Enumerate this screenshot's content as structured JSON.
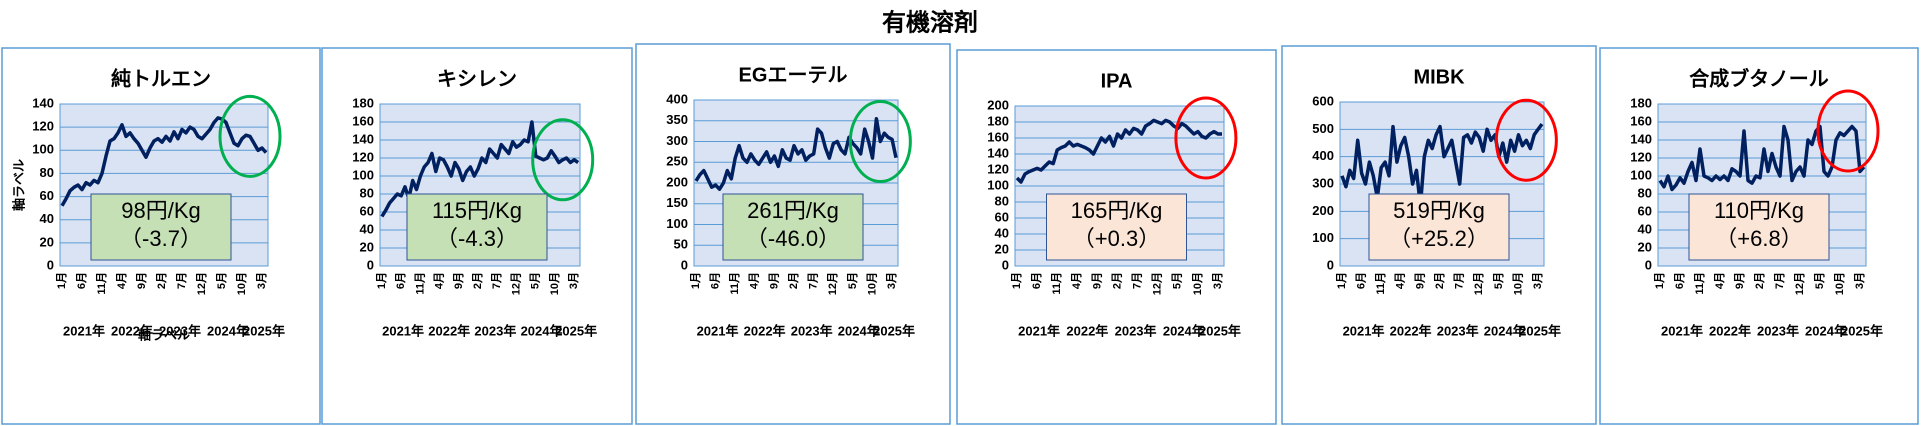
{
  "title": "有機溶剤",
  "chart_data": [
    {
      "type": "line",
      "title": "純トルエン",
      "ylabel": "軸ラベル",
      "xlabel": "軸ラベル",
      "color": "#002060",
      "categories": [
        "1月",
        null,
        null,
        null,
        null,
        "6月",
        null,
        null,
        null,
        null,
        "11月",
        null,
        null,
        null,
        null,
        "4月",
        null,
        null,
        null,
        null,
        "9月",
        null,
        null,
        null,
        null,
        "2月",
        null,
        null,
        null,
        null,
        "7月",
        null,
        null,
        null,
        null,
        "12月",
        null,
        null,
        null,
        null,
        "5月",
        null,
        null,
        null,
        null,
        "10月",
        null,
        null,
        null,
        null,
        "3月",
        null
      ],
      "values": [
        52,
        58,
        65,
        68,
        70,
        66,
        72,
        70,
        74,
        72,
        80,
        95,
        108,
        110,
        115,
        122,
        112,
        115,
        110,
        106,
        100,
        94,
        102,
        108,
        110,
        107,
        112,
        108,
        116,
        110,
        118,
        115,
        120,
        118,
        112,
        110,
        114,
        118,
        124,
        128,
        127,
        124,
        115,
        106,
        104,
        110,
        113,
        112,
        106,
        100,
        102,
        98
      ],
      "year_labels": [
        "2021年",
        "2022年",
        "2023年",
        "2024年",
        "2025年"
      ],
      "ylim": [
        0,
        140
      ],
      "yticks": [
        0,
        20,
        40,
        60,
        80,
        100,
        120,
        140
      ],
      "annotation": [
        "98円/Kg",
        "（-3.7）"
      ],
      "annotation_color": "#c5e0b4",
      "circle_color": "#00b050"
    },
    {
      "type": "line",
      "title": "キシレン",
      "color": "#002060",
      "categories": [
        "1月",
        null,
        null,
        null,
        null,
        "6月",
        null,
        null,
        null,
        null,
        "11月",
        null,
        null,
        null,
        null,
        "4月",
        null,
        null,
        null,
        null,
        "9月",
        null,
        null,
        null,
        null,
        "2月",
        null,
        null,
        null,
        null,
        "7月",
        null,
        null,
        null,
        null,
        "12月",
        null,
        null,
        null,
        null,
        "5月",
        null,
        null,
        null,
        null,
        "10月",
        null,
        null,
        null,
        null,
        "3月",
        null
      ],
      "values": [
        55,
        62,
        70,
        75,
        80,
        78,
        88,
        75,
        95,
        85,
        100,
        110,
        115,
        125,
        105,
        120,
        118,
        110,
        100,
        115,
        108,
        95,
        105,
        110,
        100,
        108,
        120,
        115,
        130,
        125,
        120,
        135,
        130,
        125,
        138,
        132,
        135,
        140,
        138,
        160,
        122,
        120,
        118,
        120,
        128,
        122,
        115,
        118,
        120,
        115,
        118,
        115
      ],
      "year_labels": [
        "2021年",
        "2022年",
        "2023年",
        "2024年",
        "2025年"
      ],
      "ylim": [
        0,
        180
      ],
      "yticks": [
        0,
        20,
        40,
        60,
        80,
        100,
        120,
        140,
        160,
        180
      ],
      "annotation": [
        "115円/Kg",
        "（-4.3）"
      ],
      "annotation_color": "#c5e0b4",
      "circle_color": "#00b050"
    },
    {
      "type": "line",
      "title": "EGエーテル",
      "color": "#002060",
      "categories": [
        "1月",
        null,
        null,
        null,
        null,
        "6月",
        null,
        null,
        null,
        null,
        "11月",
        null,
        null,
        null,
        null,
        "4月",
        null,
        null,
        null,
        null,
        "9月",
        null,
        null,
        null,
        null,
        "2月",
        null,
        null,
        null,
        null,
        "7月",
        null,
        null,
        null,
        null,
        "12月",
        null,
        null,
        null,
        null,
        "5月",
        null,
        null,
        null,
        null,
        "10月",
        null,
        null,
        null,
        null,
        "3月",
        null
      ],
      "values": [
        205,
        220,
        230,
        210,
        190,
        195,
        185,
        200,
        230,
        210,
        260,
        290,
        260,
        250,
        270,
        255,
        245,
        260,
        275,
        250,
        265,
        240,
        280,
        260,
        255,
        290,
        270,
        280,
        255,
        265,
        270,
        330,
        320,
        285,
        260,
        295,
        300,
        280,
        270,
        310,
        295,
        285,
        270,
        330,
        300,
        260,
        355,
        300,
        320,
        310,
        305,
        261
      ],
      "year_labels": [
        "2021年",
        "2022年",
        "2023年",
        "2024年",
        "2025年"
      ],
      "ylim": [
        0,
        400
      ],
      "yticks": [
        0,
        50,
        100,
        150,
        200,
        250,
        300,
        350,
        400
      ],
      "annotation": [
        "261円/Kg",
        "（-46.0）"
      ],
      "annotation_color": "#c5e0b4",
      "circle_color": "#00b050"
    },
    {
      "type": "line",
      "title": "IPA",
      "color": "#002060",
      "categories": [
        "1月",
        null,
        null,
        null,
        null,
        "6月",
        null,
        null,
        null,
        null,
        "11月",
        null,
        null,
        null,
        null,
        "4月",
        null,
        null,
        null,
        null,
        "9月",
        null,
        null,
        null,
        null,
        "2月",
        null,
        null,
        null,
        null,
        "7月",
        null,
        null,
        null,
        null,
        "12月",
        null,
        null,
        null,
        null,
        "5月",
        null,
        null,
        null,
        null,
        "10月",
        null,
        null,
        null,
        null,
        "3月",
        null
      ],
      "values": [
        110,
        105,
        115,
        118,
        120,
        122,
        120,
        125,
        130,
        128,
        145,
        148,
        150,
        155,
        150,
        152,
        150,
        148,
        145,
        140,
        150,
        160,
        155,
        162,
        150,
        165,
        160,
        170,
        165,
        172,
        170,
        165,
        175,
        178,
        182,
        180,
        178,
        182,
        180,
        175,
        172,
        178,
        175,
        170,
        165,
        168,
        162,
        160,
        165,
        168,
        165,
        165
      ],
      "year_labels": [
        "2021年",
        "2022年",
        "2023年",
        "2024年",
        "2025年"
      ],
      "ylim": [
        0,
        200
      ],
      "yticks": [
        0,
        20,
        40,
        60,
        80,
        100,
        120,
        140,
        160,
        180,
        200
      ],
      "annotation": [
        "165円/Kg",
        "（+0.3）"
      ],
      "annotation_color": "#fbe5d6",
      "circle_color": "#ff0000"
    },
    {
      "type": "line",
      "title": "MIBK",
      "color": "#002060",
      "categories": [
        "1月",
        null,
        null,
        null,
        null,
        "6月",
        null,
        null,
        null,
        null,
        "11月",
        null,
        null,
        null,
        null,
        "4月",
        null,
        null,
        null,
        null,
        "9月",
        null,
        null,
        null,
        null,
        "2月",
        null,
        null,
        null,
        null,
        "7月",
        null,
        null,
        null,
        null,
        "12月",
        null,
        null,
        null,
        null,
        "5月",
        null,
        null,
        null,
        null,
        "10月",
        null,
        null,
        null,
        null,
        "3月",
        null
      ],
      "values": [
        330,
        290,
        350,
        320,
        460,
        340,
        300,
        380,
        330,
        250,
        360,
        380,
        330,
        510,
        380,
        440,
        470,
        400,
        300,
        350,
        220,
        400,
        460,
        430,
        480,
        510,
        400,
        430,
        460,
        380,
        300,
        470,
        480,
        450,
        490,
        470,
        420,
        500,
        460,
        480,
        400,
        450,
        380,
        460,
        420,
        480,
        440,
        460,
        430,
        480,
        500,
        519
      ],
      "year_labels": [
        "2021年",
        "2022年",
        "2023年",
        "2024年",
        "2025年"
      ],
      "ylim": [
        0,
        600
      ],
      "yticks": [
        0,
        100,
        200,
        300,
        400,
        500,
        600
      ],
      "annotation": [
        "519円/Kg",
        "（+25.2）"
      ],
      "annotation_color": "#fbe5d6",
      "circle_color": "#ff0000"
    },
    {
      "type": "line",
      "title": "合成ブタノール",
      "color": "#002060",
      "categories": [
        "1月",
        null,
        null,
        null,
        null,
        "6月",
        null,
        null,
        null,
        null,
        "11月",
        null,
        null,
        null,
        null,
        "4月",
        null,
        null,
        null,
        null,
        "9月",
        null,
        null,
        null,
        null,
        "2月",
        null,
        null,
        null,
        null,
        "7月",
        null,
        null,
        null,
        null,
        "12月",
        null,
        null,
        null,
        null,
        "5月",
        null,
        null,
        null,
        null,
        "10月",
        null,
        null,
        null,
        null,
        "3月",
        null
      ],
      "values": [
        95,
        88,
        100,
        85,
        90,
        98,
        92,
        105,
        115,
        95,
        130,
        100,
        98,
        95,
        100,
        96,
        100,
        95,
        108,
        105,
        100,
        150,
        95,
        92,
        100,
        98,
        130,
        105,
        125,
        110,
        100,
        155,
        140,
        95,
        105,
        110,
        100,
        140,
        135,
        150,
        155,
        105,
        100,
        110,
        140,
        148,
        145,
        150,
        155,
        150,
        105,
        110
      ],
      "year_labels": [
        "2021年",
        "2022年",
        "2023年",
        "2024年",
        "2025年"
      ],
      "ylim": [
        0,
        180
      ],
      "yticks": [
        0,
        20,
        40,
        60,
        80,
        100,
        120,
        140,
        160,
        180
      ],
      "annotation": [
        "110円/Kg",
        "（+6.8）"
      ],
      "annotation_color": "#fbe5d6",
      "circle_color": "#ff0000"
    }
  ]
}
